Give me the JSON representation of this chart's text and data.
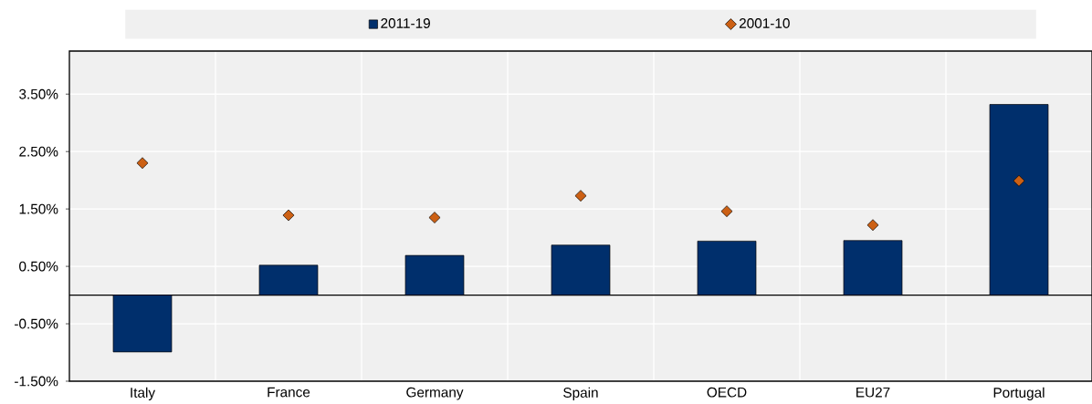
{
  "chart_data": {
    "type": "bar",
    "categories": [
      "Italy",
      "France",
      "Germany",
      "Spain",
      "OECD",
      "EU27",
      "Portugal"
    ],
    "series": [
      {
        "name": "2011-19",
        "color": "#002f6c",
        "values": [
          -0.99,
          0.52,
          0.69,
          0.87,
          0.94,
          0.95,
          3.32
        ]
      },
      {
        "name": "2001-10",
        "type": "scatter",
        "marker": "diamond",
        "color": "#cc6014",
        "values": [
          2.3,
          1.39,
          1.35,
          1.73,
          1.46,
          1.22,
          1.99
        ]
      }
    ],
    "ylim": [
      -1.5,
      4.25
    ],
    "yticks": [
      {
        "value": -1.5,
        "label": "-1.50%"
      },
      {
        "value": -0.5,
        "label": "-0.50%"
      },
      {
        "value": 0.5,
        "label": "0.50%"
      },
      {
        "value": 1.5,
        "label": "1.50%"
      },
      {
        "value": 2.5,
        "label": "2.50%"
      },
      {
        "value": 3.5,
        "label": "3.50%"
      }
    ],
    "grid": true,
    "legend": "top"
  }
}
